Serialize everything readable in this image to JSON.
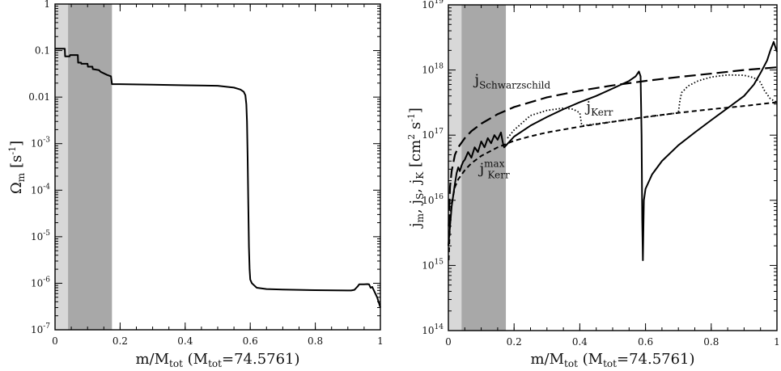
{
  "chart_data": [
    {
      "id": "omega",
      "type": "line",
      "yscale": "log",
      "xlim": [
        0,
        1
      ],
      "ylim": [
        1e-07,
        1
      ],
      "x_ticks": [
        0,
        0.2,
        0.4,
        0.6,
        0.8,
        1
      ],
      "x_tick_labels": [
        "0",
        "0.2",
        "0.4",
        "0.6",
        "0.8",
        "1"
      ],
      "y_ticks": [
        1e-07,
        1e-06,
        1e-05,
        0.0001,
        0.001,
        0.01,
        0.1,
        1
      ],
      "y_tick_labels": [
        {
          "base": "10",
          "exp": "-7"
        },
        {
          "base": "10",
          "exp": "-6"
        },
        {
          "base": "10",
          "exp": "-5"
        },
        {
          "base": "10",
          "exp": "-4"
        },
        {
          "base": "10",
          "exp": "-3"
        },
        {
          "base": "0.01",
          "exp": ""
        },
        {
          "base": "0.1",
          "exp": ""
        },
        {
          "base": "1",
          "exp": ""
        }
      ],
      "ylabel": {
        "main": "Ω",
        "sub": "m",
        "unit": "[s",
        "unit_exp": "-1",
        "unit_end": "]"
      },
      "xlabel": {
        "a": "m/M",
        "a_sub": "tot",
        "b": " (M",
        "b_sub": "tot",
        "c": "=74.5761)"
      },
      "shaded_regions": [
        {
          "x0": 0,
          "x1": 0.04,
          "color": "#d8d8d8"
        },
        {
          "x0": 0.04,
          "x1": 0.175,
          "color": "#a8a8a8"
        }
      ],
      "series": [
        {
          "name": "Omega_m",
          "style": "solid",
          "x": [
            0,
            0.03,
            0.031,
            0.045,
            0.046,
            0.07,
            0.071,
            0.08,
            0.081,
            0.1,
            0.101,
            0.115,
            0.116,
            0.135,
            0.14,
            0.16,
            0.172,
            0.175,
            0.2,
            0.3,
            0.4,
            0.5,
            0.55,
            0.57,
            0.58,
            0.585,
            0.588,
            0.59,
            0.592,
            0.594,
            0.596,
            0.598,
            0.6,
            0.605,
            0.62,
            0.65,
            0.7,
            0.8,
            0.9,
            0.91,
            0.92,
            0.93,
            0.935,
            0.94,
            0.95,
            0.96,
            0.965,
            0.97,
            0.975,
            0.98,
            0.99,
            1.0
          ],
          "y": [
            0.11,
            0.11,
            0.075,
            0.075,
            0.08,
            0.08,
            0.055,
            0.055,
            0.052,
            0.052,
            0.045,
            0.045,
            0.04,
            0.038,
            0.035,
            0.03,
            0.028,
            0.019,
            0.019,
            0.0185,
            0.018,
            0.0175,
            0.016,
            0.0145,
            0.013,
            0.011,
            0.007,
            0.003,
            0.0005,
            5e-05,
            6e-06,
            2e-06,
            1.2e-06,
            1e-06,
            8e-07,
            7.5e-07,
            7.3e-07,
            7.1e-07,
            7e-07,
            7e-07,
            7.2e-07,
            8.5e-07,
            9.5e-07,
            9.5e-07,
            9.5e-07,
            9.6e-07,
            9.5e-07,
            8e-07,
            8.3e-07,
            7e-07,
            5e-07,
            3e-07
          ]
        }
      ]
    },
    {
      "id": "specific-angular-momentum",
      "type": "line",
      "yscale": "log",
      "xlim": [
        0,
        1
      ],
      "ylim": [
        100000000000000.0,
        1e+19
      ],
      "x_ticks": [
        0,
        0.2,
        0.4,
        0.6,
        0.8,
        1
      ],
      "x_tick_labels": [
        "0",
        "0.2",
        "0.4",
        "0.6",
        "0.8",
        "1"
      ],
      "y_ticks": [
        100000000000000.0,
        1000000000000000.0,
        1e+16,
        1e+17,
        1e+18,
        1e+19
      ],
      "y_tick_labels": [
        {
          "base": "10",
          "exp": "14"
        },
        {
          "base": "10",
          "exp": "15"
        },
        {
          "base": "10",
          "exp": "16"
        },
        {
          "base": "10",
          "exp": "17"
        },
        {
          "base": "10",
          "exp": "18"
        },
        {
          "base": "10",
          "exp": "19"
        }
      ],
      "ylabel": {
        "j1": "j",
        "s1": "m",
        "j2": ", j",
        "s2": "S",
        "j3": ", j",
        "s3": "K",
        "unit": " [cm",
        "unit_exp": "2",
        "unit_mid": " s",
        "unit_exp2": "-1",
        "unit_end": "]"
      },
      "xlabel": {
        "a": "m/M",
        "a_sub": "tot",
        "b": " (M",
        "b_sub": "tot",
        "c": "=74.5761)"
      },
      "shaded_regions": [
        {
          "x0": 0,
          "x1": 0.04,
          "color": "#d8d8d8"
        },
        {
          "x0": 0.04,
          "x1": 0.175,
          "color": "#a8a8a8"
        }
      ],
      "annotations": [
        {
          "text": "j",
          "sub": "Schwarzschild",
          "sup": "",
          "x": 0.08,
          "y": 6e+17
        },
        {
          "text": "j",
          "sub": "Kerr",
          "sup": "",
          "x": 0.42,
          "y": 2.3e+17
        },
        {
          "text": "j",
          "sub": "Kerr",
          "sup": "max",
          "x": 0.095,
          "y": 2.6e+16
        }
      ],
      "series": [
        {
          "name": "j_Schwarzschild",
          "style": "long-dash",
          "x": [
            0.001,
            0.005,
            0.01,
            0.02,
            0.03,
            0.05,
            0.07,
            0.1,
            0.15,
            0.2,
            0.25,
            0.3,
            0.4,
            0.5,
            0.6,
            0.7,
            0.8,
            0.9,
            1.0
          ],
          "y": [
            4000000000000000.0,
            1.6e+16,
            2.8e+16,
            5e+16,
            6.5e+16,
            9e+16,
            1.15e+17,
            1.5e+17,
            2.1e+17,
            2.7e+17,
            3.2e+17,
            3.8e+17,
            4.8e+17,
            5.8e+17,
            6.8e+17,
            7.8e+17,
            8.8e+17,
            1e+18,
            1.1e+18
          ]
        },
        {
          "name": "j_Kerr_max",
          "style": "short-dash",
          "x": [
            0.001,
            0.005,
            0.01,
            0.02,
            0.03,
            0.05,
            0.07,
            0.1,
            0.15,
            0.2,
            0.25,
            0.3,
            0.4,
            0.5,
            0.6,
            0.7,
            0.8,
            0.9,
            1.0
          ],
          "y": [
            1200000000000000.0,
            4500000000000000.0,
            9000000000000000.0,
            1.6e+16,
            2.1e+16,
            2.9e+16,
            3.7e+16,
            4.8e+16,
            6.5e+16,
            8.2e+16,
            9.6e+16,
            1.1e+17,
            1.35e+17,
            1.6e+17,
            1.9e+17,
            2.2e+17,
            2.5e+17,
            2.8e+17,
            3.2e+17
          ]
        },
        {
          "name": "j_Kerr",
          "style": "dotted",
          "x": [
            0.18,
            0.2,
            0.25,
            0.3,
            0.35,
            0.38,
            0.4,
            0.405,
            0.41,
            0.7,
            0.705,
            0.71,
            0.73,
            0.76,
            0.8,
            0.85,
            0.9,
            0.93,
            0.95,
            0.96,
            0.98,
            1.0
          ],
          "y": [
            9e+16,
            1.2e+17,
            2e+17,
            2.4e+17,
            2.6e+17,
            2.5e+17,
            2.2e+17,
            1.5e+17,
            1.4e+17,
            2.2e+17,
            3.5e+17,
            4.5e+17,
            5.7e+17,
            6.8e+17,
            7.8e+17,
            8.4e+17,
            8.3e+17,
            7.6e+17,
            6.5e+17,
            5e+17,
            3.6e+17,
            3.2e+17
          ]
        },
        {
          "name": "j_m",
          "style": "solid",
          "x": [
            0.0,
            0.005,
            0.01,
            0.015,
            0.02,
            0.025,
            0.03,
            0.035,
            0.04,
            0.045,
            0.05,
            0.06,
            0.07,
            0.08,
            0.09,
            0.1,
            0.11,
            0.12,
            0.13,
            0.14,
            0.15,
            0.16,
            0.165,
            0.168,
            0.17,
            0.2,
            0.25,
            0.3,
            0.35,
            0.4,
            0.45,
            0.5,
            0.55,
            0.57,
            0.58,
            0.585,
            0.588,
            0.59,
            0.592,
            0.594,
            0.595,
            0.6,
            0.62,
            0.65,
            0.7,
            0.75,
            0.8,
            0.85,
            0.9,
            0.93,
            0.95,
            0.97,
            0.98,
            0.99,
            1.0
          ],
          "y": [
            2000000000000000.0,
            4000000000000000.0,
            8000000000000000.0,
            1.2e+16,
            1.8e+16,
            2.6e+16,
            3.2e+16,
            2.8e+16,
            3.4e+16,
            3.9e+16,
            4.2e+16,
            5.5e+16,
            4.5e+16,
            6.5e+16,
            5.5e+16,
            8e+16,
            6.5e+16,
            9e+16,
            7.5e+16,
            1e+17,
            8.5e+16,
            1.1e+17,
            8e+16,
            6.8e+16,
            6.5e+16,
            9.5e+16,
            1.4e+17,
            1.9e+17,
            2.5e+17,
            3.2e+17,
            4e+17,
            5.2e+17,
            6.8e+17,
            8e+17,
            9.5e+17,
            8e+17,
            1e+17,
            5000000000000000.0,
            1200000000000000.0,
            5000000000000000.0,
            1e+16,
            1.5e+16,
            2.5e+16,
            4e+16,
            7e+16,
            1.1e+17,
            1.7e+17,
            2.6e+17,
            4e+17,
            6e+17,
            9e+17,
            1.4e+18,
            2e+18,
            2.7e+18,
            1.9e+18
          ]
        }
      ]
    }
  ]
}
